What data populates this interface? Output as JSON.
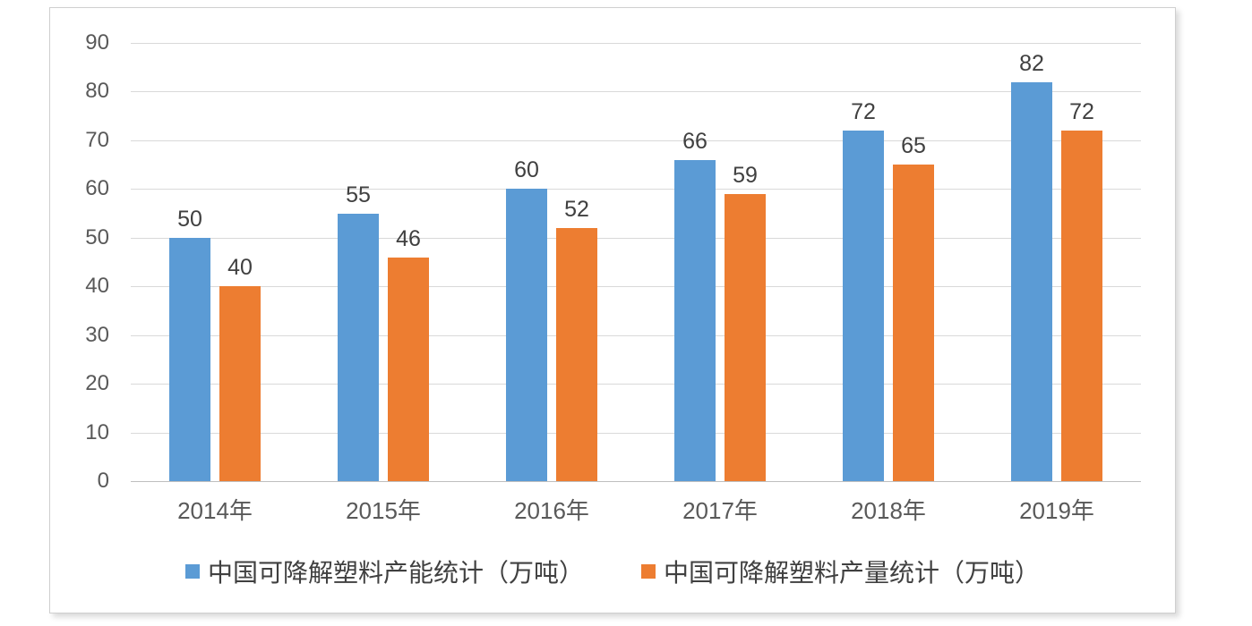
{
  "chart_data": {
    "type": "bar",
    "title": "",
    "xlabel": "",
    "ylabel": "",
    "categories": [
      "2014年",
      "2015年",
      "2016年",
      "2017年",
      "2018年",
      "2019年"
    ],
    "series": [
      {
        "key": "capacity",
        "name": "中国可降解塑料产能统计（万吨）",
        "color": "#5B9BD5",
        "values": [
          50,
          55,
          60,
          66,
          72,
          82
        ]
      },
      {
        "key": "output",
        "name": "中国可降解塑料产量统计（万吨）",
        "color": "#ED7D31",
        "values": [
          40,
          46,
          52,
          59,
          65,
          72
        ]
      }
    ],
    "ylim": [
      0,
      90
    ],
    "ytick_step": 10,
    "yticks": [
      0,
      10,
      20,
      30,
      40,
      50,
      60,
      70,
      80,
      90
    ],
    "grid": true,
    "data_labels": true,
    "legend_position": "bottom"
  },
  "colors": {
    "background": "#FFFFFF",
    "frame_border": "#CFCFCF",
    "gridline": "#D9D9D9",
    "axis_line": "#BFBFBF",
    "axis_text": "#595959",
    "data_label_text": "#404040",
    "legend_text": "#404040"
  }
}
